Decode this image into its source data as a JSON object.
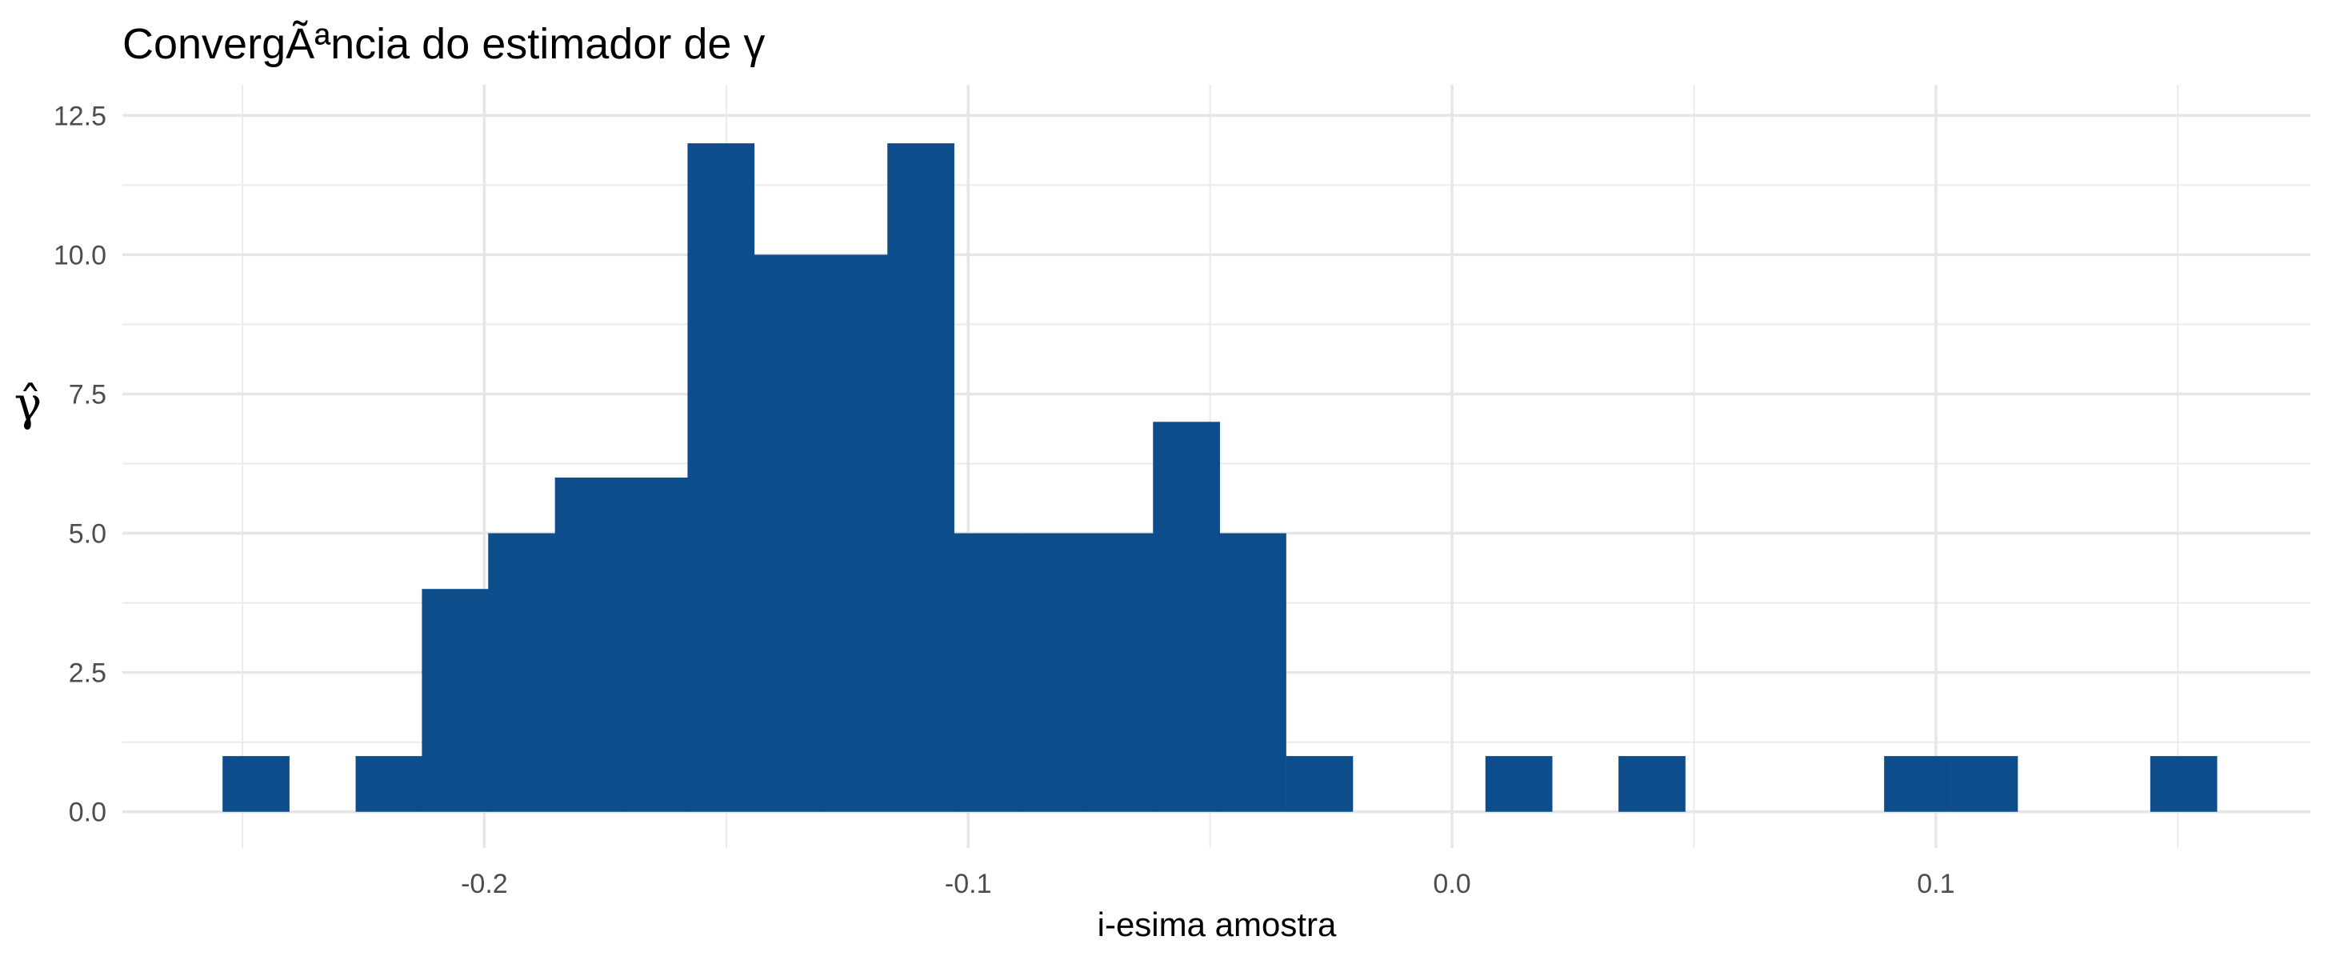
{
  "chart_data": {
    "type": "bar",
    "title": "ConvergÃªncia do estimador de γ",
    "xlabel": "i-esima amostra",
    "ylabel": "γ̂",
    "xlim": [
      -0.2748,
      0.1774
    ],
    "ylim": [
      -0.65,
      13.05
    ],
    "x_ticks": [
      -0.2,
      -0.1,
      0.0,
      0.1
    ],
    "x_tick_labels": [
      "-0.2",
      "-0.1",
      "0.0",
      "0.1"
    ],
    "y_ticks": [
      0,
      2.5,
      5,
      7.5,
      10,
      12.5
    ],
    "y_tick_labels": [
      "0.0",
      "2.5",
      "5.0",
      "7.5",
      "10.0",
      "12.5"
    ],
    "grid": true,
    "bar_color": "#0D4D8B",
    "bin_width": 0.01374,
    "bins_start": [
      -0.2541,
      -0.2404,
      -0.2266,
      -0.2129,
      -0.1992,
      -0.1854,
      -0.1717,
      -0.158,
      -0.1442,
      -0.1305,
      -0.1167,
      -0.103,
      -0.0893,
      -0.0755,
      -0.0618,
      -0.0481,
      -0.0343,
      -0.0206,
      -0.0068,
      0.0069,
      0.0206,
      0.0344,
      0.0481,
      0.0618,
      0.0756,
      0.0893,
      0.1031,
      0.1168,
      0.1305,
      0.1443
    ],
    "values": [
      1,
      0,
      1,
      4,
      5,
      6,
      6,
      12,
      10,
      10,
      12,
      5,
      5,
      5,
      7,
      5,
      1,
      0,
      0,
      1,
      0,
      1,
      0,
      0,
      0,
      1,
      1,
      0,
      0,
      1
    ]
  }
}
